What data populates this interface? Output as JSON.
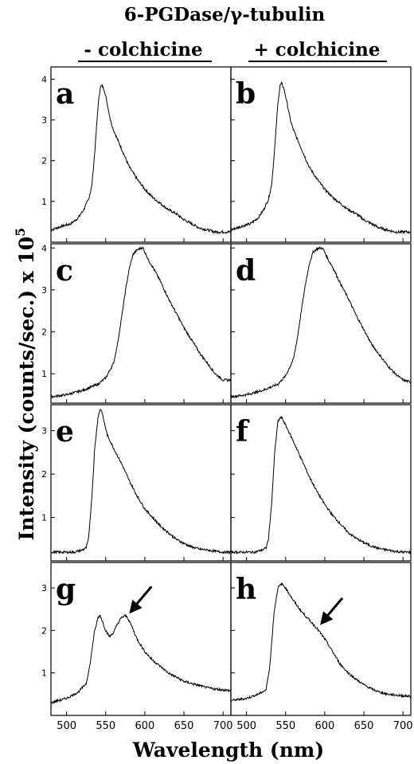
{
  "title": "6-PGDase/γ-tubulin",
  "columns": [
    "- colchicine",
    "+ colchicine"
  ],
  "ylabel": "Intensity (counts/sec.) x 10",
  "ylabel_exp": "5",
  "xlabel": "Wavelength (nm)",
  "colors": {
    "line": "#000000",
    "background": "#ffffff"
  },
  "chart_data": {
    "type": "line",
    "xlim": [
      480,
      710
    ],
    "xticks": [
      500,
      550,
      600,
      650,
      700
    ],
    "panels": [
      {
        "label": "a",
        "ylim": [
          0,
          4.3
        ],
        "yticks": [
          1,
          2,
          3,
          4
        ],
        "x": [
          480,
          495,
          505,
          515,
          522,
          528,
          532,
          536,
          540,
          543,
          545,
          548,
          552,
          556,
          560,
          570,
          580,
          590,
          600,
          610,
          620,
          630,
          640,
          650,
          660,
          670,
          680,
          690,
          700,
          710
        ],
        "y": [
          0.3,
          0.4,
          0.45,
          0.6,
          0.8,
          1.05,
          1.35,
          2.2,
          3.3,
          3.8,
          3.85,
          3.75,
          3.4,
          3.0,
          2.75,
          2.3,
          1.85,
          1.55,
          1.3,
          1.1,
          0.95,
          0.8,
          0.7,
          0.55,
          0.45,
          0.35,
          0.3,
          0.25,
          0.25,
          0.25
        ]
      },
      {
        "label": "b",
        "ylim": [
          0,
          4.3
        ],
        "yticks": [
          1,
          2,
          3,
          4
        ],
        "x": [
          480,
          495,
          505,
          515,
          522,
          528,
          532,
          536,
          540,
          543,
          545,
          548,
          552,
          556,
          560,
          570,
          580,
          590,
          600,
          610,
          620,
          630,
          640,
          650,
          660,
          670,
          680,
          690,
          700,
          710
        ],
        "y": [
          0.3,
          0.4,
          0.45,
          0.6,
          0.8,
          1.05,
          1.4,
          2.3,
          3.4,
          3.85,
          3.9,
          3.75,
          3.4,
          3.0,
          2.75,
          2.3,
          1.85,
          1.55,
          1.3,
          1.1,
          0.95,
          0.8,
          0.7,
          0.55,
          0.45,
          0.35,
          0.3,
          0.25,
          0.25,
          0.25
        ]
      },
      {
        "label": "c",
        "ylim": [
          0.3,
          4.1
        ],
        "yticks": [
          1,
          2,
          3,
          4
        ],
        "x": [
          480,
          500,
          520,
          540,
          550,
          560,
          565,
          570,
          575,
          580,
          585,
          590,
          595,
          598,
          600,
          605,
          610,
          620,
          630,
          640,
          650,
          660,
          670,
          680,
          690,
          700,
          710
        ],
        "y": [
          0.45,
          0.5,
          0.6,
          0.75,
          0.9,
          1.25,
          1.7,
          2.3,
          2.95,
          3.5,
          3.85,
          3.95,
          4.0,
          4.0,
          3.9,
          3.7,
          3.55,
          3.2,
          2.8,
          2.45,
          2.1,
          1.8,
          1.5,
          1.25,
          1.0,
          0.85,
          0.85
        ]
      },
      {
        "label": "d",
        "ylim": [
          0.3,
          4.1
        ],
        "yticks": [
          1,
          2,
          3,
          4
        ],
        "x": [
          480,
          500,
          520,
          540,
          550,
          560,
          565,
          570,
          575,
          580,
          585,
          590,
          595,
          598,
          600,
          605,
          610,
          620,
          630,
          640,
          650,
          660,
          670,
          680,
          690,
          700,
          710
        ],
        "y": [
          0.45,
          0.5,
          0.6,
          0.75,
          0.95,
          1.35,
          1.85,
          2.5,
          3.1,
          3.6,
          3.9,
          3.98,
          4.0,
          3.98,
          3.9,
          3.7,
          3.55,
          3.15,
          2.8,
          2.4,
          2.05,
          1.7,
          1.45,
          1.2,
          1.0,
          0.85,
          0.8
        ]
      },
      {
        "label": "e",
        "ylim": [
          0,
          3.6
        ],
        "yticks": [
          1,
          2,
          3
        ],
        "x": [
          480,
          500,
          510,
          520,
          525,
          528,
          532,
          536,
          540,
          543,
          545,
          548,
          552,
          556,
          560,
          570,
          580,
          590,
          600,
          610,
          620,
          630,
          640,
          650,
          660,
          670,
          680,
          690,
          700,
          710
        ],
        "y": [
          0.2,
          0.2,
          0.2,
          0.25,
          0.3,
          0.5,
          1.4,
          2.6,
          3.3,
          3.5,
          3.45,
          3.2,
          2.9,
          2.75,
          2.6,
          2.25,
          1.85,
          1.5,
          1.2,
          1.0,
          0.8,
          0.65,
          0.5,
          0.4,
          0.32,
          0.27,
          0.25,
          0.22,
          0.2,
          0.2
        ]
      },
      {
        "label": "f",
        "ylim": [
          0,
          3.6
        ],
        "yticks": [
          1,
          2,
          3
        ],
        "x": [
          480,
          500,
          510,
          520,
          525,
          528,
          532,
          536,
          540,
          543,
          545,
          548,
          552,
          556,
          560,
          570,
          580,
          590,
          600,
          610,
          620,
          630,
          640,
          650,
          660,
          670,
          680,
          690,
          700,
          710
        ],
        "y": [
          0.2,
          0.2,
          0.2,
          0.25,
          0.3,
          0.5,
          1.3,
          2.5,
          3.2,
          3.3,
          3.3,
          3.2,
          3.05,
          2.9,
          2.75,
          2.35,
          1.95,
          1.6,
          1.3,
          1.05,
          0.85,
          0.65,
          0.52,
          0.42,
          0.34,
          0.28,
          0.25,
          0.22,
          0.2,
          0.2
        ]
      },
      {
        "label": "g",
        "ylim": [
          0,
          3.6
        ],
        "yticks": [
          1,
          2,
          3
        ],
        "x": [
          480,
          500,
          515,
          525,
          530,
          535,
          540,
          543,
          546,
          550,
          555,
          560,
          565,
          570,
          575,
          578,
          582,
          590,
          600,
          610,
          620,
          630,
          640,
          650,
          660,
          670,
          680,
          690,
          700,
          710
        ],
        "y": [
          0.3,
          0.4,
          0.55,
          0.75,
          1.2,
          1.9,
          2.3,
          2.35,
          2.2,
          2.0,
          1.85,
          1.95,
          2.15,
          2.3,
          2.35,
          2.3,
          2.15,
          1.8,
          1.5,
          1.3,
          1.15,
          1.0,
          0.9,
          0.8,
          0.75,
          0.7,
          0.65,
          0.62,
          0.6,
          0.58
        ]
      },
      {
        "label": "h",
        "ylim": [
          0,
          3.6
        ],
        "yticks": [
          1,
          2,
          3
        ],
        "x": [
          480,
          500,
          515,
          525,
          530,
          535,
          540,
          545,
          550,
          555,
          560,
          570,
          580,
          590,
          600,
          610,
          620,
          630,
          640,
          650,
          660,
          670,
          680,
          690,
          700,
          710
        ],
        "y": [
          0.35,
          0.4,
          0.5,
          0.6,
          1.2,
          2.4,
          3.0,
          3.1,
          3.0,
          2.85,
          2.7,
          2.45,
          2.25,
          2.05,
          1.8,
          1.5,
          1.2,
          1.0,
          0.85,
          0.72,
          0.62,
          0.55,
          0.5,
          0.48,
          0.46,
          0.45
        ]
      }
    ],
    "arrows": [
      {
        "panel": "g",
        "x": 578,
        "y": 2.32
      },
      {
        "panel": "h",
        "x": 592,
        "y": 2.05
      }
    ]
  }
}
